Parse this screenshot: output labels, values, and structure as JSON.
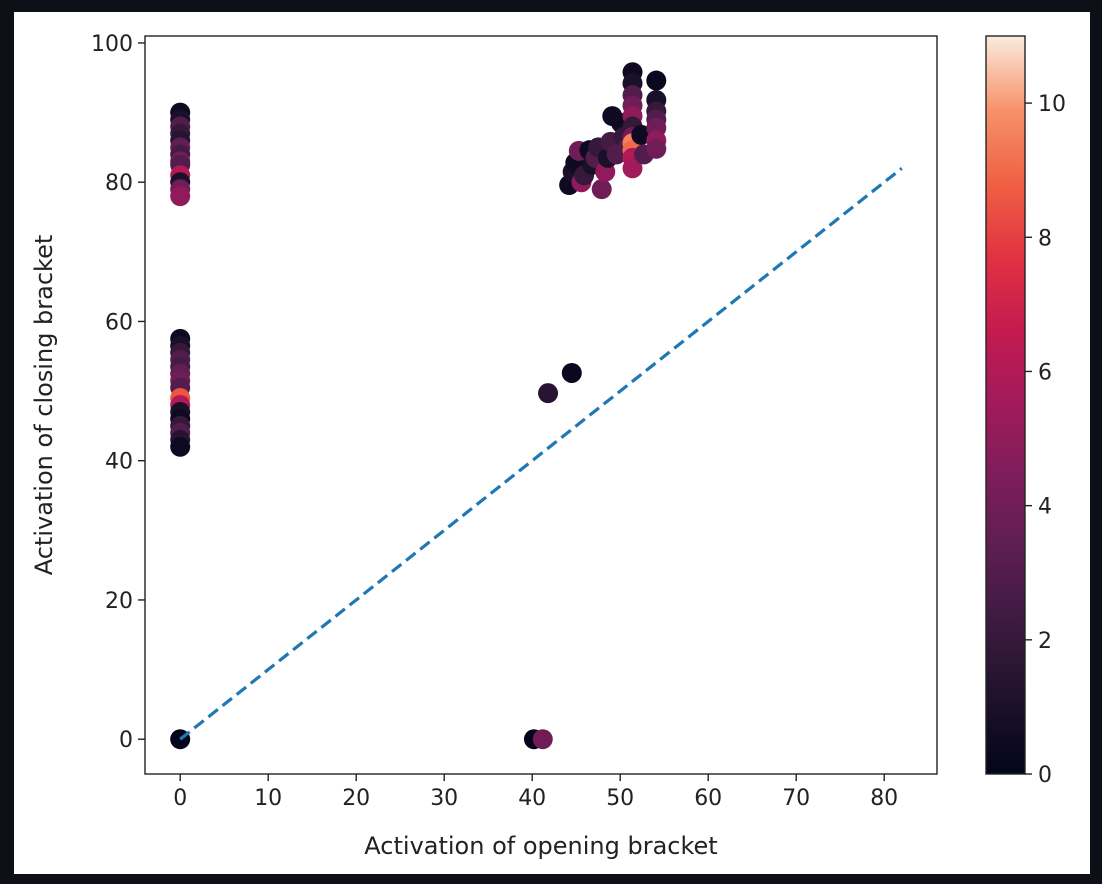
{
  "chart_data": {
    "type": "scatter",
    "title": "",
    "xlabel": "Activation of opening bracket",
    "ylabel": "Activation of closing bracket",
    "xlim": [
      -4,
      86
    ],
    "ylim": [
      -5,
      101
    ],
    "xticks": [
      0,
      10,
      20,
      30,
      40,
      50,
      60,
      70,
      80
    ],
    "yticks": [
      0,
      20,
      40,
      60,
      80,
      100
    ],
    "grid": false,
    "colorbar": {
      "colormap": "rocket",
      "range": [
        0,
        11
      ],
      "ticks": [
        0,
        2,
        4,
        6,
        8,
        10
      ]
    },
    "reference_line": {
      "style": "dashed",
      "color": "#1f77b4",
      "x": [
        0,
        82
      ],
      "y": [
        0,
        82
      ]
    },
    "points": [
      {
        "x": 0,
        "y": 90,
        "c": 0.5
      },
      {
        "x": 0,
        "y": 89,
        "c": 1
      },
      {
        "x": 0,
        "y": 88,
        "c": 3
      },
      {
        "x": 0,
        "y": 87,
        "c": 2
      },
      {
        "x": 0,
        "y": 86,
        "c": 1.5
      },
      {
        "x": 0,
        "y": 85,
        "c": 3.5
      },
      {
        "x": 0,
        "y": 84,
        "c": 2.5
      },
      {
        "x": 0,
        "y": 83,
        "c": 4
      },
      {
        "x": 0,
        "y": 82.5,
        "c": 3
      },
      {
        "x": 0,
        "y": 81,
        "c": 6
      },
      {
        "x": 0,
        "y": 80,
        "c": 1
      },
      {
        "x": 0,
        "y": 79,
        "c": 4
      },
      {
        "x": 0,
        "y": 78,
        "c": 5
      },
      {
        "x": 0,
        "y": 57.5,
        "c": 0.5
      },
      {
        "x": 0,
        "y": 56.5,
        "c": 1
      },
      {
        "x": 0,
        "y": 55.5,
        "c": 2
      },
      {
        "x": 0,
        "y": 54.5,
        "c": 3
      },
      {
        "x": 0,
        "y": 53.5,
        "c": 2.5
      },
      {
        "x": 0,
        "y": 52.5,
        "c": 3.5
      },
      {
        "x": 0,
        "y": 51.5,
        "c": 4
      },
      {
        "x": 0,
        "y": 50.5,
        "c": 3
      },
      {
        "x": 0,
        "y": 49,
        "c": 8.5
      },
      {
        "x": 0,
        "y": 48,
        "c": 6
      },
      {
        "x": 0,
        "y": 47,
        "c": 1
      },
      {
        "x": 0,
        "y": 46,
        "c": 0.5
      },
      {
        "x": 0,
        "y": 45,
        "c": 2
      },
      {
        "x": 0,
        "y": 44,
        "c": 3
      },
      {
        "x": 0,
        "y": 43,
        "c": 1.5
      },
      {
        "x": 0,
        "y": 42,
        "c": 0.5
      },
      {
        "x": 0,
        "y": 0,
        "c": 0
      },
      {
        "x": 40.2,
        "y": 0,
        "c": 0
      },
      {
        "x": 41.2,
        "y": 0,
        "c": 4
      },
      {
        "x": 41.8,
        "y": 49.7,
        "c": 1.5
      },
      {
        "x": 44.5,
        "y": 52.6,
        "c": 0.3
      },
      {
        "x": 44.2,
        "y": 79.6,
        "c": 0.5
      },
      {
        "x": 44.6,
        "y": 81.5,
        "c": 1
      },
      {
        "x": 44.9,
        "y": 82.8,
        "c": 0.5
      },
      {
        "x": 45.3,
        "y": 84.5,
        "c": 4
      },
      {
        "x": 45.6,
        "y": 80,
        "c": 5
      },
      {
        "x": 45.9,
        "y": 81,
        "c": 2
      },
      {
        "x": 46.5,
        "y": 84.6,
        "c": 0.5
      },
      {
        "x": 46.8,
        "y": 82.5,
        "c": 1
      },
      {
        "x": 47.2,
        "y": 83.5,
        "c": 3
      },
      {
        "x": 47.5,
        "y": 85,
        "c": 2
      },
      {
        "x": 47.9,
        "y": 79,
        "c": 4
      },
      {
        "x": 48.3,
        "y": 81.5,
        "c": 5
      },
      {
        "x": 48.6,
        "y": 83.5,
        "c": 1
      },
      {
        "x": 48.9,
        "y": 85.8,
        "c": 2.5
      },
      {
        "x": 49.1,
        "y": 89.5,
        "c": 0.5
      },
      {
        "x": 49.6,
        "y": 84,
        "c": 3
      },
      {
        "x": 50.1,
        "y": 88.5,
        "c": 0.5
      },
      {
        "x": 50.4,
        "y": 86.5,
        "c": 2
      },
      {
        "x": 50.9,
        "y": 85,
        "c": 3
      },
      {
        "x": 51.4,
        "y": 95.8,
        "c": 0.5
      },
      {
        "x": 51.4,
        "y": 94.2,
        "c": 1
      },
      {
        "x": 51.4,
        "y": 92.5,
        "c": 3
      },
      {
        "x": 51.4,
        "y": 91,
        "c": 4
      },
      {
        "x": 51.4,
        "y": 89.5,
        "c": 5
      },
      {
        "x": 51.4,
        "y": 88,
        "c": 2
      },
      {
        "x": 51.4,
        "y": 86.5,
        "c": 4
      },
      {
        "x": 51.4,
        "y": 85.6,
        "c": 9.5
      },
      {
        "x": 51.4,
        "y": 84.6,
        "c": 9
      },
      {
        "x": 51.4,
        "y": 83.5,
        "c": 6
      },
      {
        "x": 51.4,
        "y": 82,
        "c": 5.5
      },
      {
        "x": 52.4,
        "y": 86.8,
        "c": 0.5
      },
      {
        "x": 52.7,
        "y": 84,
        "c": 3
      },
      {
        "x": 54.1,
        "y": 94.6,
        "c": 0.3
      },
      {
        "x": 54.1,
        "y": 91.8,
        "c": 1
      },
      {
        "x": 54.1,
        "y": 90.2,
        "c": 2
      },
      {
        "x": 54.1,
        "y": 89,
        "c": 3
      },
      {
        "x": 54.1,
        "y": 87.8,
        "c": 4
      },
      {
        "x": 54.1,
        "y": 86,
        "c": 5
      },
      {
        "x": 54.1,
        "y": 84.8,
        "c": 4
      }
    ]
  }
}
